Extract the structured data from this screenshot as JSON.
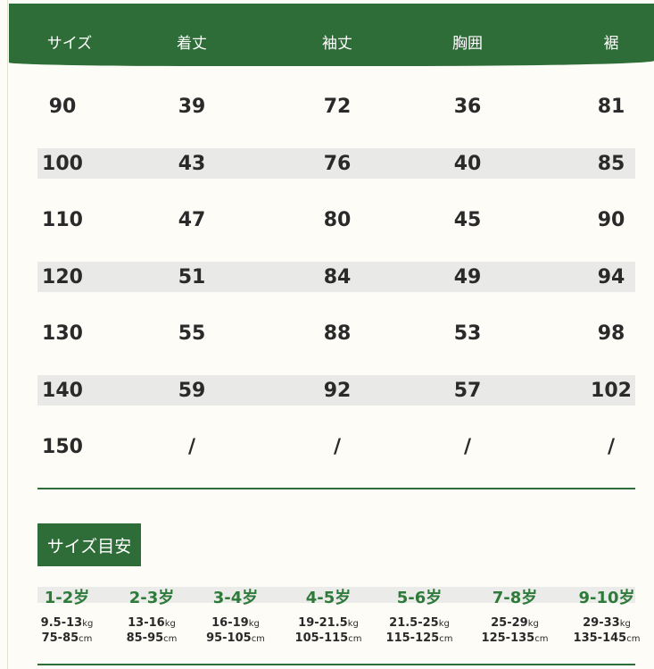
{
  "header": [
    "サイズ",
    "着丈",
    "袖丈",
    "胸囲",
    "裾"
  ],
  "rows": [
    [
      "90",
      "39",
      "72",
      "36",
      "81"
    ],
    [
      "100",
      "43",
      "76",
      "40",
      "85"
    ],
    [
      "110",
      "47",
      "80",
      "45",
      "90"
    ],
    [
      "120",
      "51",
      "84",
      "49",
      "94"
    ],
    [
      "130",
      "55",
      "88",
      "53",
      "98"
    ],
    [
      "140",
      "59",
      "92",
      "57",
      "102"
    ],
    [
      "150",
      "/",
      "/",
      "/",
      "/"
    ]
  ],
  "guide": {
    "title": "サイズ目安",
    "items": [
      {
        "age": "1-2岁",
        "kg": "9.5-13",
        "cm": "75-85"
      },
      {
        "age": "2-3岁",
        "kg": "13-16",
        "cm": "85-95"
      },
      {
        "age": "3-4岁",
        "kg": "16-19",
        "cm": "95-105"
      },
      {
        "age": "4-5岁",
        "kg": "19-21.5",
        "cm": "105-115"
      },
      {
        "age": "5-6岁",
        "kg": "21.5-25",
        "cm": "115-125"
      },
      {
        "age": "7-8岁",
        "kg": "25-29",
        "cm": "125-135"
      },
      {
        "age": "9-10岁",
        "kg": "29-33",
        "cm": "135-145"
      }
    ],
    "kg_unit": "kg",
    "cm_unit": "cm"
  },
  "colors": {
    "accent": "#2e6d37",
    "stripe": "#e9e9e7"
  }
}
